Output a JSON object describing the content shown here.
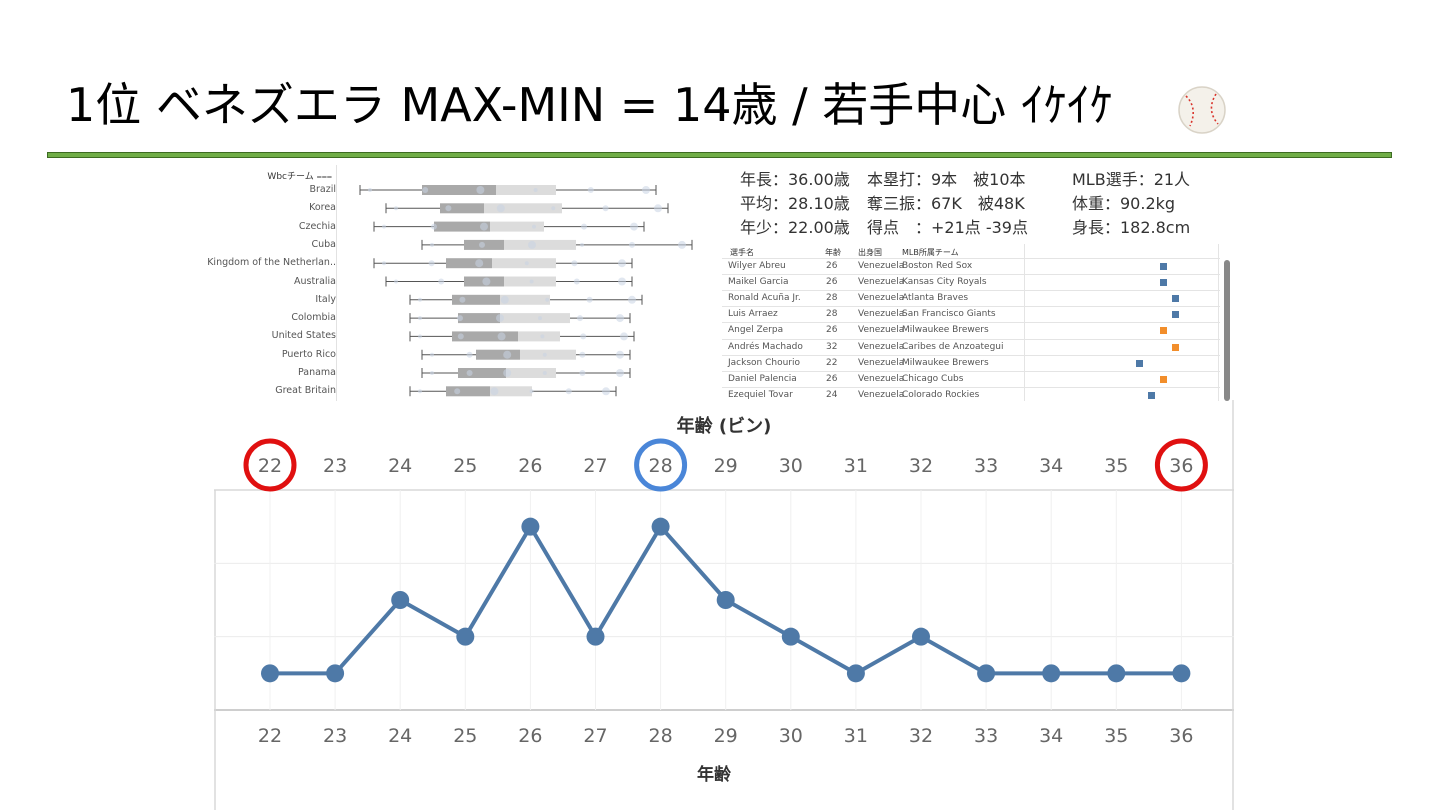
{
  "slide": {
    "title": "1位 ベネズエラ MAX-MIN = 14歳 / 若手中心 ｲｹｲｹ",
    "accent_color": "#70ad47",
    "icon": "baseball-icon"
  },
  "boxplot_panel": {
    "header": "Wbcチーム",
    "teams": [
      "Brazil",
      "Korea",
      "Czechia",
      "Cuba",
      "Kingdom of the Netherlan..",
      "Australia",
      "Italy",
      "Colombia",
      "United States",
      "Puerto Rico",
      "Panama",
      "Great Britain"
    ]
  },
  "stats": {
    "col1": [
      "年長：36.00歳",
      "平均：28.10歳",
      "年少：22.00歳"
    ],
    "col2": [
      "本塁打：9本　被10本",
      "奪三振：67K　被48K",
      "得点　：+21点 -39点"
    ],
    "col3": [
      "MLB選手：21人",
      "体重：90.2kg",
      "身長：182.8cm"
    ]
  },
  "player_table": {
    "headers": [
      "選手名",
      "年齢",
      "出身国",
      "MLB所属チーム"
    ],
    "rows": [
      {
        "name": "Wilyer Abreu",
        "age": "26",
        "country": "Venezuela",
        "team": "Boston Red Sox",
        "marker": "blue"
      },
      {
        "name": "Maikel Garcia",
        "age": "26",
        "country": "Venezuela",
        "team": "Kansas City Royals",
        "marker": "blue"
      },
      {
        "name": "Ronald Acuña Jr.",
        "age": "28",
        "country": "Venezuela",
        "team": "Atlanta Braves",
        "marker": "blue"
      },
      {
        "name": "Luis Arraez",
        "age": "28",
        "country": "Venezuela",
        "team": "San Francisco Giants",
        "marker": "blue"
      },
      {
        "name": "Angel Zerpa",
        "age": "26",
        "country": "Venezuela",
        "team": "Milwaukee Brewers",
        "marker": "orange"
      },
      {
        "name": "Andrés Machado",
        "age": "32",
        "country": "Venezuela",
        "team": "Caribes de Anzoategui",
        "marker": "orange"
      },
      {
        "name": "Jackson Chourio",
        "age": "22",
        "country": "Venezuela",
        "team": "Milwaukee Brewers",
        "marker": "blue"
      },
      {
        "name": "Daniel Palencia",
        "age": "26",
        "country": "Venezuela",
        "team": "Chicago Cubs",
        "marker": "orange"
      },
      {
        "name": "Ezequiel Tovar",
        "age": "24",
        "country": "Venezuela",
        "team": "Colorado Rockies",
        "marker": "blue"
      }
    ],
    "marker_colors": {
      "blue": "#4e79a7",
      "orange": "#f28e2b"
    }
  },
  "chart_data": {
    "type": "line",
    "title": "",
    "top_axis_label": "年齢 (ビン)",
    "xlabel": "年齢",
    "ylabel": "",
    "x": [
      22,
      23,
      24,
      25,
      26,
      27,
      28,
      29,
      30,
      31,
      32,
      33,
      34,
      35,
      36
    ],
    "values": [
      1,
      1,
      3,
      2,
      5,
      2,
      5,
      3,
      2,
      1,
      2,
      1,
      1,
      1,
      1
    ],
    "ylim": [
      0,
      6
    ],
    "line_color": "#4e79a7",
    "grid": true,
    "highlight_red": [
      22,
      36
    ],
    "highlight_blue": [
      28
    ],
    "highlight_red_color": "#e01010",
    "highlight_blue_color": "#4a86d8"
  }
}
